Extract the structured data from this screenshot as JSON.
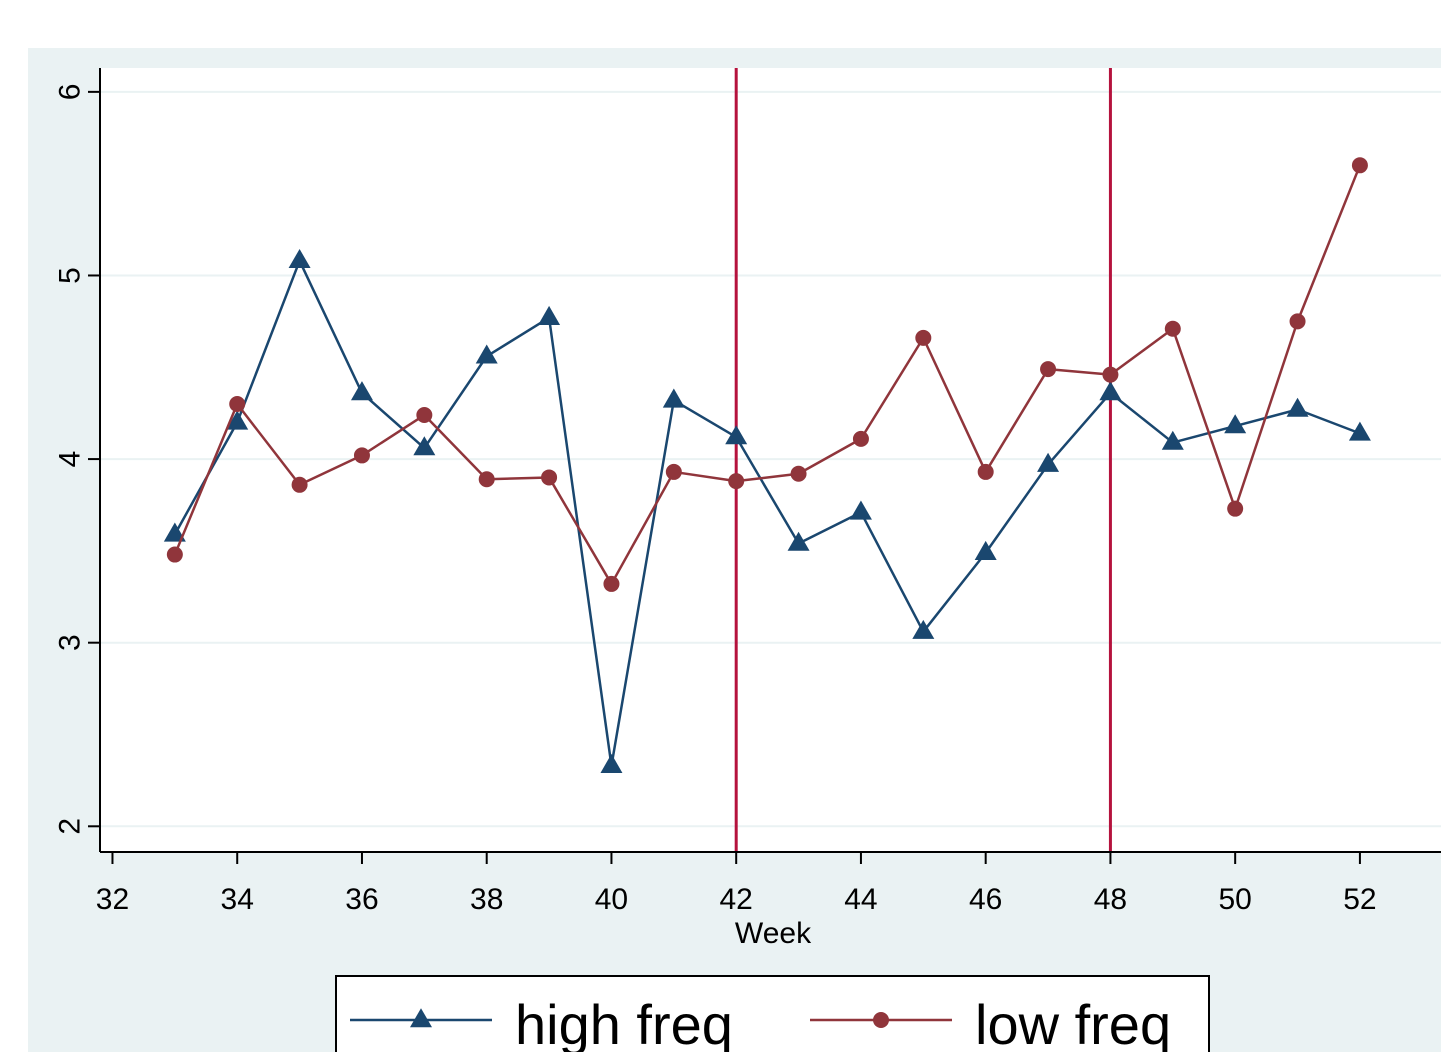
{
  "chart_data": {
    "type": "line",
    "title": "",
    "xlabel": "Week",
    "ylabel": "",
    "xlim": [
      31.8,
      53.3
    ],
    "ylim": [
      1.86,
      6.13
    ],
    "xticks": [
      32,
      34,
      36,
      38,
      40,
      42,
      44,
      46,
      48,
      50,
      52
    ],
    "yticks": [
      2,
      3,
      4,
      5,
      6
    ],
    "grid": true,
    "legend_position": "bottom",
    "reference_lines_x": [
      42,
      48
    ],
    "x": [
      33,
      34,
      35,
      36,
      37,
      38,
      39,
      40,
      41,
      42,
      43,
      44,
      45,
      46,
      47,
      48,
      49,
      50,
      51,
      52
    ],
    "series": [
      {
        "name": "high freq",
        "marker": "triangle",
        "color": "#1a476f",
        "values": [
          3.59,
          4.2,
          5.08,
          4.36,
          4.06,
          4.56,
          4.77,
          2.33,
          4.32,
          4.12,
          3.54,
          3.71,
          3.06,
          3.49,
          3.97,
          4.36,
          4.09,
          4.18,
          4.27,
          4.14
        ]
      },
      {
        "name": "low freq",
        "marker": "circle",
        "color": "#90353b",
        "values": [
          3.48,
          4.3,
          3.86,
          4.02,
          4.24,
          3.89,
          3.9,
          3.32,
          3.93,
          3.88,
          3.92,
          4.11,
          4.66,
          3.93,
          4.49,
          4.46,
          4.71,
          3.73,
          4.75,
          5.6
        ]
      }
    ]
  },
  "colors": {
    "background_outer": "#eaf2f3",
    "plot_area": "#ffffff",
    "grid": "#eaf2f3",
    "reference_line": "#b5123d",
    "axis": "#000000"
  }
}
